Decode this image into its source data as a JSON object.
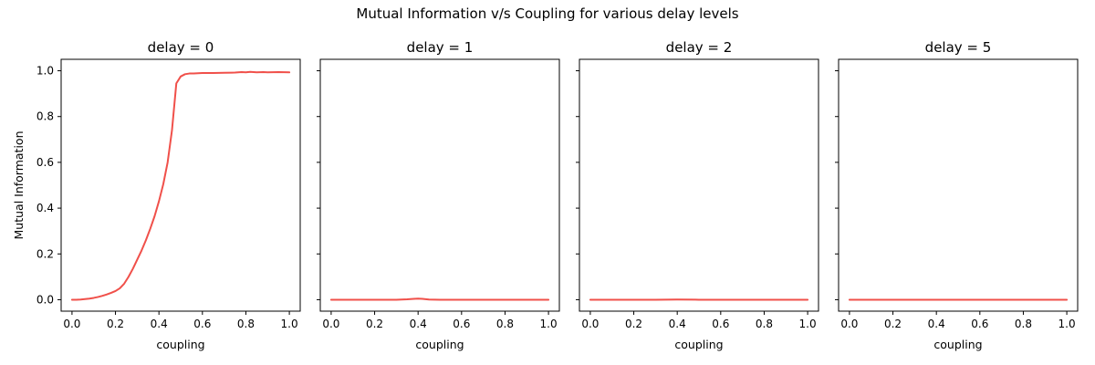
{
  "chart_data": {
    "type": "line",
    "title": "Mutual Information v/s Coupling for various delay levels",
    "ylabel": "Mutual Information",
    "line_color": "#f0504a",
    "xlim": [
      -0.05,
      1.05
    ],
    "ylim": [
      -0.05,
      1.05
    ],
    "xticks": [
      "0.0",
      "0.2",
      "0.4",
      "0.6",
      "0.8",
      "1.0"
    ],
    "yticks": [
      "0.0",
      "0.2",
      "0.4",
      "0.6",
      "0.8",
      "1.0"
    ],
    "grid": false,
    "sharey": true,
    "panels": [
      {
        "title": "delay = 0",
        "xlabel": "coupling",
        "x": [
          0.0,
          0.02,
          0.04,
          0.06,
          0.08,
          0.1,
          0.12,
          0.14,
          0.16,
          0.18,
          0.2,
          0.22,
          0.24,
          0.26,
          0.28,
          0.3,
          0.32,
          0.34,
          0.36,
          0.38,
          0.4,
          0.42,
          0.44,
          0.46,
          0.48,
          0.5,
          0.52,
          0.54,
          0.56,
          0.58,
          0.6,
          0.65,
          0.7,
          0.75,
          0.78,
          0.8,
          0.82,
          0.85,
          0.88,
          0.9,
          0.95,
          1.0
        ],
        "y": [
          0.0,
          0.0,
          0.001,
          0.003,
          0.005,
          0.008,
          0.012,
          0.017,
          0.023,
          0.03,
          0.038,
          0.05,
          0.07,
          0.1,
          0.135,
          0.175,
          0.215,
          0.26,
          0.31,
          0.365,
          0.43,
          0.505,
          0.6,
          0.74,
          0.945,
          0.975,
          0.985,
          0.988,
          0.988,
          0.989,
          0.99,
          0.99,
          0.991,
          0.992,
          0.994,
          0.993,
          0.995,
          0.993,
          0.994,
          0.993,
          0.994,
          0.993
        ]
      },
      {
        "title": "delay = 1",
        "xlabel": "coupling",
        "x": [
          0.0,
          0.1,
          0.2,
          0.3,
          0.35,
          0.38,
          0.4,
          0.42,
          0.45,
          0.5,
          0.6,
          0.7,
          0.8,
          0.9,
          1.0
        ],
        "y": [
          0.0,
          0.0,
          0.0,
          0.0,
          0.002,
          0.004,
          0.005,
          0.004,
          0.001,
          0.0,
          0.0,
          0.0,
          0.0,
          0.0,
          0.0
        ]
      },
      {
        "title": "delay = 2",
        "xlabel": "coupling",
        "x": [
          0.0,
          0.1,
          0.2,
          0.3,
          0.4,
          0.5,
          0.6,
          0.7,
          0.8,
          0.9,
          1.0
        ],
        "y": [
          0.0,
          0.0,
          0.0,
          0.0,
          0.001,
          0.0,
          0.0,
          0.0,
          0.0,
          0.0,
          0.0
        ]
      },
      {
        "title": "delay = 5",
        "xlabel": "coupling",
        "x": [
          0.0,
          0.1,
          0.2,
          0.3,
          0.4,
          0.5,
          0.6,
          0.7,
          0.8,
          0.9,
          1.0
        ],
        "y": [
          0.0,
          0.0,
          0.0,
          0.0,
          0.0,
          0.0,
          0.0,
          0.0,
          0.0,
          0.0,
          0.0
        ]
      }
    ]
  }
}
